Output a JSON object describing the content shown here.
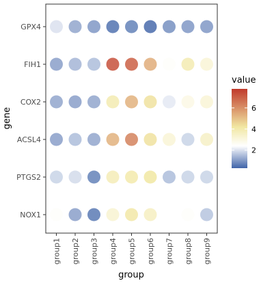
{
  "chart_data": {
    "type": "dot-heatmap",
    "title": "",
    "xlabel": "group",
    "ylabel": "gene",
    "x_categories": [
      "group1",
      "group2",
      "group3",
      "group4",
      "group5",
      "group6",
      "group7",
      "group8",
      "group9"
    ],
    "y_categories": [
      "NOX1",
      "PTGS2",
      "ACSL4",
      "COX2",
      "FIH1",
      "GPX4"
    ],
    "values": {
      "GPX4": [
        2.0,
        1.2,
        1.0,
        0.5,
        0.7,
        0.4,
        0.9,
        1.0,
        1.0
      ],
      "FIH1": [
        1.1,
        1.4,
        1.5,
        7.3,
        7.0,
        5.4,
        2.5,
        3.9,
        3.2
      ],
      "COX2": [
        1.2,
        1.1,
        1.2,
        3.9,
        5.3,
        4.3,
        2.1,
        2.9,
        3.2
      ],
      "ACSL4": [
        1.1,
        1.5,
        1.2,
        5.3,
        6.3,
        4.3,
        3.2,
        1.8,
        3.5
      ],
      "PTGS2": [
        1.8,
        1.9,
        0.7,
        3.8,
        4.0,
        4.2,
        1.5,
        1.8,
        1.8
      ],
      "NOX1": [
        2.5,
        1.1,
        0.6,
        3.3,
        4.1,
        3.6,
        2.4,
        2.5,
        1.6
      ]
    },
    "legend": {
      "title": "value",
      "range": [
        0.3,
        7.8
      ],
      "ticks": [
        2,
        4,
        6
      ],
      "position": "right",
      "colors": [
        "#4064a8",
        "#ffffff",
        "#f1e7a2",
        "#c0392b"
      ]
    },
    "grid": false
  }
}
